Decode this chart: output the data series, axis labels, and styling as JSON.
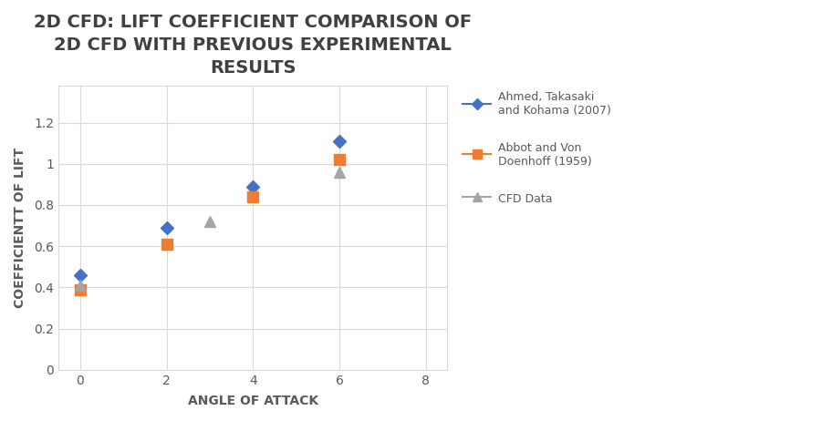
{
  "title": "2D CFD: LIFT COEFFICIENT COMPARISON OF\n2D CFD WITH PREVIOUS EXPERIMENTAL\nRESULTS",
  "xlabel": "ANGLE OF ATTACK",
  "ylabel": "COEFFICIENTT OF LIFT",
  "series": [
    {
      "label": "Ahmed, Takasaki\nand Kohama (2007)",
      "x": [
        0,
        2,
        4,
        6
      ],
      "y": [
        0.46,
        0.69,
        0.89,
        1.11
      ],
      "color": "#4472C4",
      "marker": "D",
      "markersize": 7
    },
    {
      "label": "Abbot and Von\nDoenhoff (1959)",
      "x": [
        0,
        2,
        4,
        6
      ],
      "y": [
        0.39,
        0.61,
        0.84,
        1.02
      ],
      "color": "#ED7D31",
      "marker": "s",
      "markersize": 8
    },
    {
      "label": "CFD Data",
      "x": [
        0,
        3,
        6
      ],
      "y": [
        0.41,
        0.72,
        0.96
      ],
      "color": "#A5A5A5",
      "marker": "^",
      "markersize": 8
    }
  ],
  "xlim": [
    -0.5,
    8.5
  ],
  "ylim": [
    0,
    1.38
  ],
  "xticks": [
    0,
    2,
    4,
    6,
    8
  ],
  "yticks": [
    0,
    0.2,
    0.4,
    0.6,
    0.8,
    1.0,
    1.2
  ],
  "ytick_labels": [
    "0",
    "0.2",
    "0.4",
    "0.6",
    "0.8",
    "1",
    "1.2"
  ],
  "background_color": "#FFFFFF",
  "plot_bg_color": "#FFFFFF",
  "grid_color": "#D9D9D9",
  "title_fontsize": 14,
  "axis_label_fontsize": 10,
  "tick_fontsize": 10,
  "title_color": "#404040",
  "axis_label_color": "#595959",
  "tick_color": "#595959"
}
